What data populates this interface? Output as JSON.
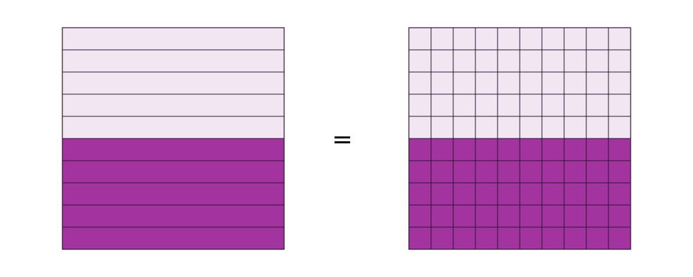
{
  "diagram": {
    "equals_symbol": "=",
    "left_model": {
      "rows": 10,
      "columns": 1,
      "shaded_rows": 5
    },
    "right_model": {
      "rows": 10,
      "columns": 10,
      "shaded_rows": 5
    },
    "colors": {
      "shaded": "#A2339F",
      "unshaded": "#F2E6F2",
      "line": "#2A1632",
      "background": "#FFFFFF"
    }
  }
}
